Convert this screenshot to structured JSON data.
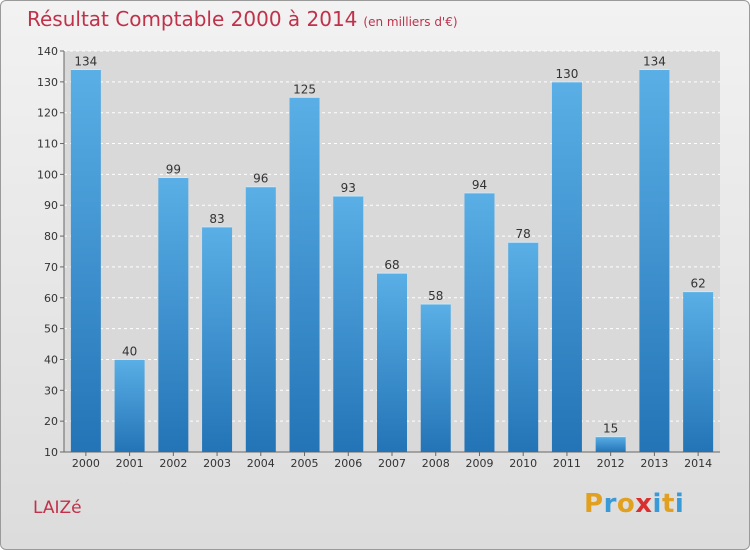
{
  "title": "Résultat Comptable 2000 à 2014",
  "subtitle": "(en milliers d'€)",
  "town": "LAIZé",
  "logo": {
    "letters": [
      "P",
      "r",
      "o",
      "x",
      "i",
      "t",
      "i"
    ],
    "colors": [
      "#e2a020",
      "#3a9ad8",
      "#e2a020",
      "#d83030",
      "#3a9ad8",
      "#e2a020",
      "#3a9ad8"
    ]
  },
  "colors": {
    "title": "#c0314a",
    "bar_light": "#5aafe6",
    "bar_dark": "#2374b6",
    "grid": "#ffffff"
  },
  "chart_data": {
    "type": "bar",
    "categories": [
      "2000",
      "2001",
      "2002",
      "2003",
      "2004",
      "2005",
      "2006",
      "2007",
      "2008",
      "2009",
      "2010",
      "2011",
      "2012",
      "2013",
      "2014"
    ],
    "values": [
      134,
      40,
      99,
      83,
      96,
      125,
      93,
      68,
      58,
      94,
      78,
      130,
      15,
      134,
      62
    ],
    "title": "Résultat Comptable 2000 à 2014",
    "xlabel": "",
    "ylabel": "",
    "ylim": [
      10,
      140
    ],
    "yticks": [
      10,
      20,
      30,
      40,
      50,
      60,
      70,
      80,
      90,
      100,
      110,
      120,
      130,
      140
    ],
    "grid": true
  }
}
